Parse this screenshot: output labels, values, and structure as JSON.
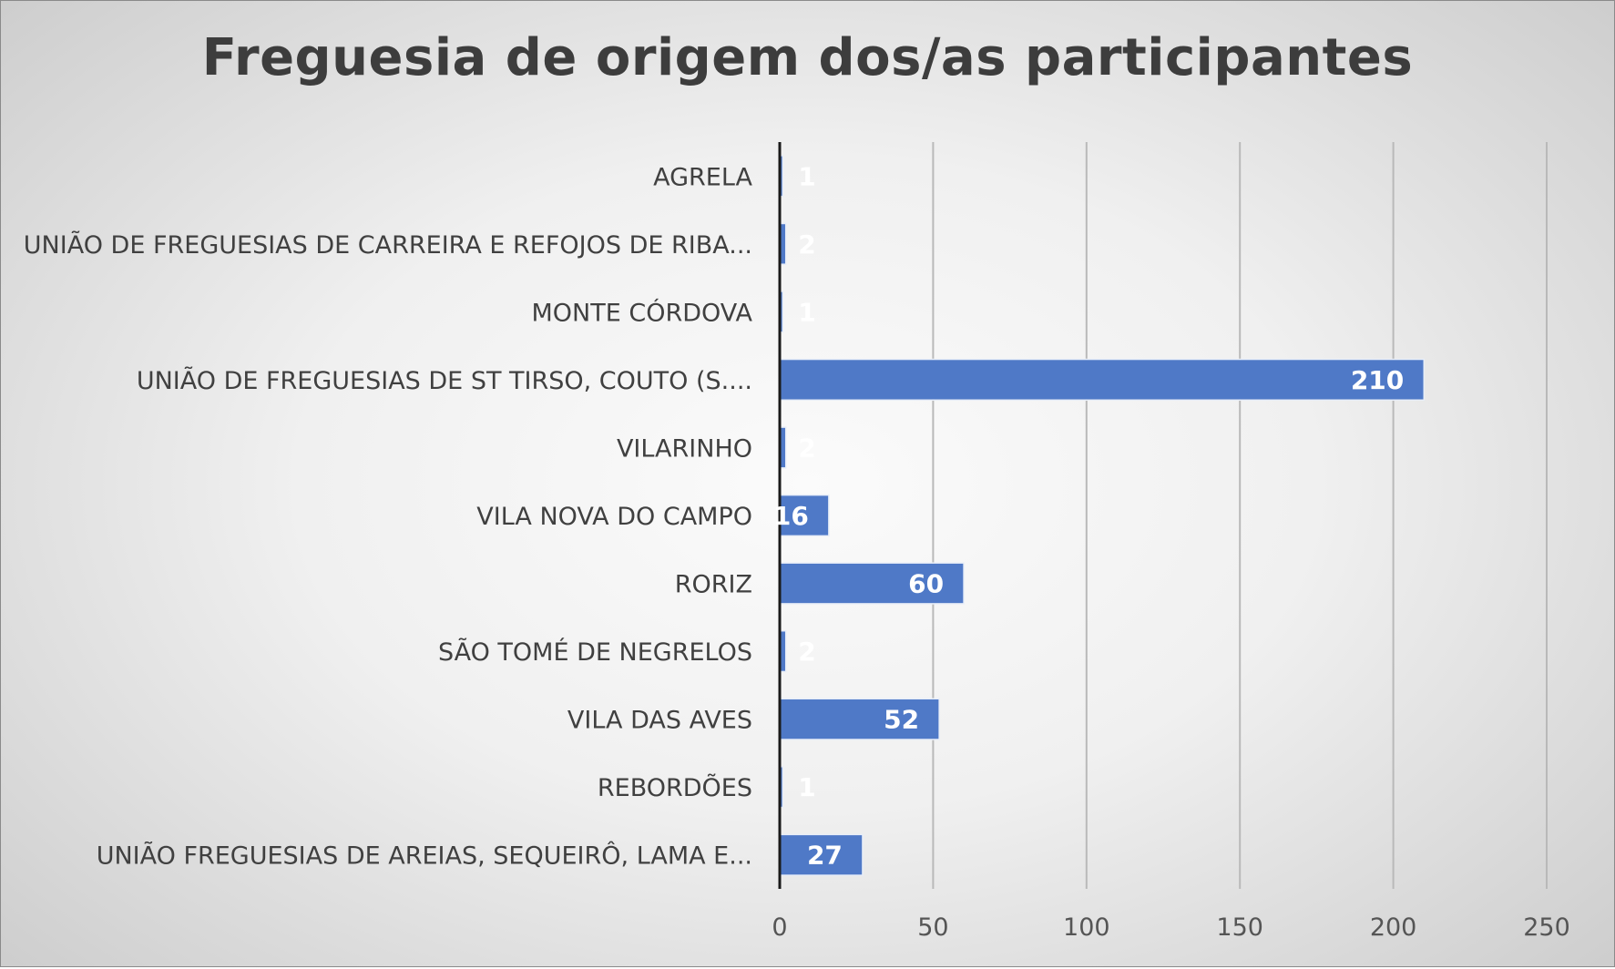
{
  "chart_data": {
    "type": "bar",
    "orientation": "horizontal",
    "title": "Freguesia de origem dos/as participantes",
    "xlabel": "",
    "ylabel": "",
    "categories": [
      "AGRELA",
      "UNIÃO DE FREGUESIAS DE CARREIRA E REFOJOS DE RIBA...",
      "MONTE CÓRDOVA",
      "UNIÃO DE FREGUESIAS DE ST TIRSO, COUTO (S....",
      "VILARINHO",
      "VILA NOVA DO CAMPO",
      "RORIZ",
      "SÃO TOMÉ DE NEGRELOS",
      "VILA DAS AVES",
      "REBORDÕES",
      "UNIÃO FREGUESIAS DE AREIAS, SEQUEIRÔ, LAMA E..."
    ],
    "values": [
      1,
      2,
      1,
      210,
      2,
      16,
      60,
      2,
      52,
      1,
      27
    ],
    "xlim": [
      0,
      250
    ],
    "xticks": [
      0,
      50,
      100,
      150,
      200,
      250
    ],
    "grid": "vertical",
    "data_labels": "inside-end",
    "colors": {
      "bar": "#4f79c7",
      "grid": "#b9b9b9",
      "axis": "#1a1a1a"
    }
  }
}
